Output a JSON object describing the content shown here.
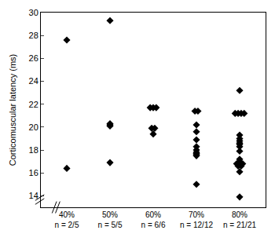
{
  "chart_data": {
    "type": "scatter",
    "y_label": "Corticomuscular latency (ms)",
    "categories": [
      "40%\nn = 2/5",
      "50%\nn = 5/5",
      "60%\nn = 6/6",
      "70%\nn = 12/12",
      "80%\nn = 21/21"
    ],
    "values": [
      [
        27.6,
        16.4
      ],
      [
        29.3,
        20.3,
        20.2,
        20.1,
        16.9
      ],
      [
        21.7,
        21.7,
        21.7,
        19.9,
        19.9,
        19.4
      ],
      [
        21.4,
        21.4,
        20.2,
        19.6,
        18.9,
        18.3,
        18.0,
        17.8,
        17.7,
        17.6,
        17.5,
        15.0
      ],
      [
        23.2,
        21.2,
        21.2,
        21.2,
        21.2,
        19.3,
        19.0,
        18.8,
        18.6,
        18.5,
        18.3,
        17.9,
        17.2,
        17.0,
        16.8,
        16.8,
        16.8,
        16.6,
        16.6,
        16.1,
        13.9
      ]
    ],
    "color": "#000000",
    "marker": "diamond",
    "ylim": [
      13,
      30
    ],
    "yticks": [
      14,
      16,
      18,
      20,
      22,
      24,
      26,
      28,
      30
    ],
    "grid": false
  }
}
